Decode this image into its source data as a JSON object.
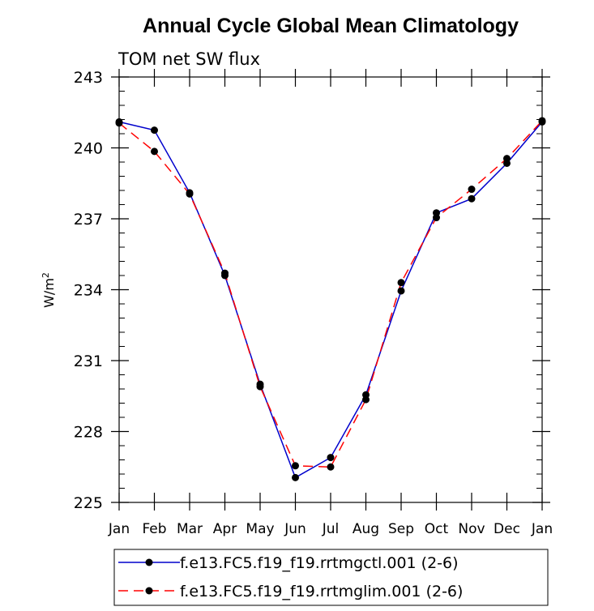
{
  "chart_data": {
    "type": "line",
    "title": "Annual Cycle Global Mean Climatology",
    "subtitle": "TOM net SW flux",
    "ylabel_base": "W/m",
    "ylabel_sup": "2",
    "xlabel": "",
    "categories": [
      "Jan",
      "Feb",
      "Mar",
      "Apr",
      "May",
      "Jun",
      "Jul",
      "Aug",
      "Sep",
      "Oct",
      "Nov",
      "Dec",
      "Jan"
    ],
    "ylim": [
      225,
      243
    ],
    "yticks": [
      225,
      228,
      231,
      234,
      237,
      240,
      243
    ],
    "yticks_minor": 0.6,
    "grid": false,
    "legend_position": "bottom",
    "series": [
      {
        "name": "f.e13.FC5.f19_f19.rrtmgctl.001 (2-6)",
        "color": "#0000cc",
        "dash": "solid",
        "marker": "circle",
        "values": [
          241.1,
          240.75,
          238.1,
          234.6,
          230.0,
          226.05,
          226.9,
          229.55,
          233.95,
          237.25,
          237.85,
          239.35,
          241.1
        ]
      },
      {
        "name": "f.e13.FC5.f19_f19.rrtmglim.001 (2-6)",
        "color": "#ff0000",
        "dash": "dashed",
        "marker": "circle",
        "values": [
          241.05,
          239.85,
          238.05,
          234.7,
          229.9,
          226.55,
          226.5,
          229.35,
          234.3,
          237.05,
          238.25,
          239.55,
          241.15
        ]
      }
    ]
  }
}
